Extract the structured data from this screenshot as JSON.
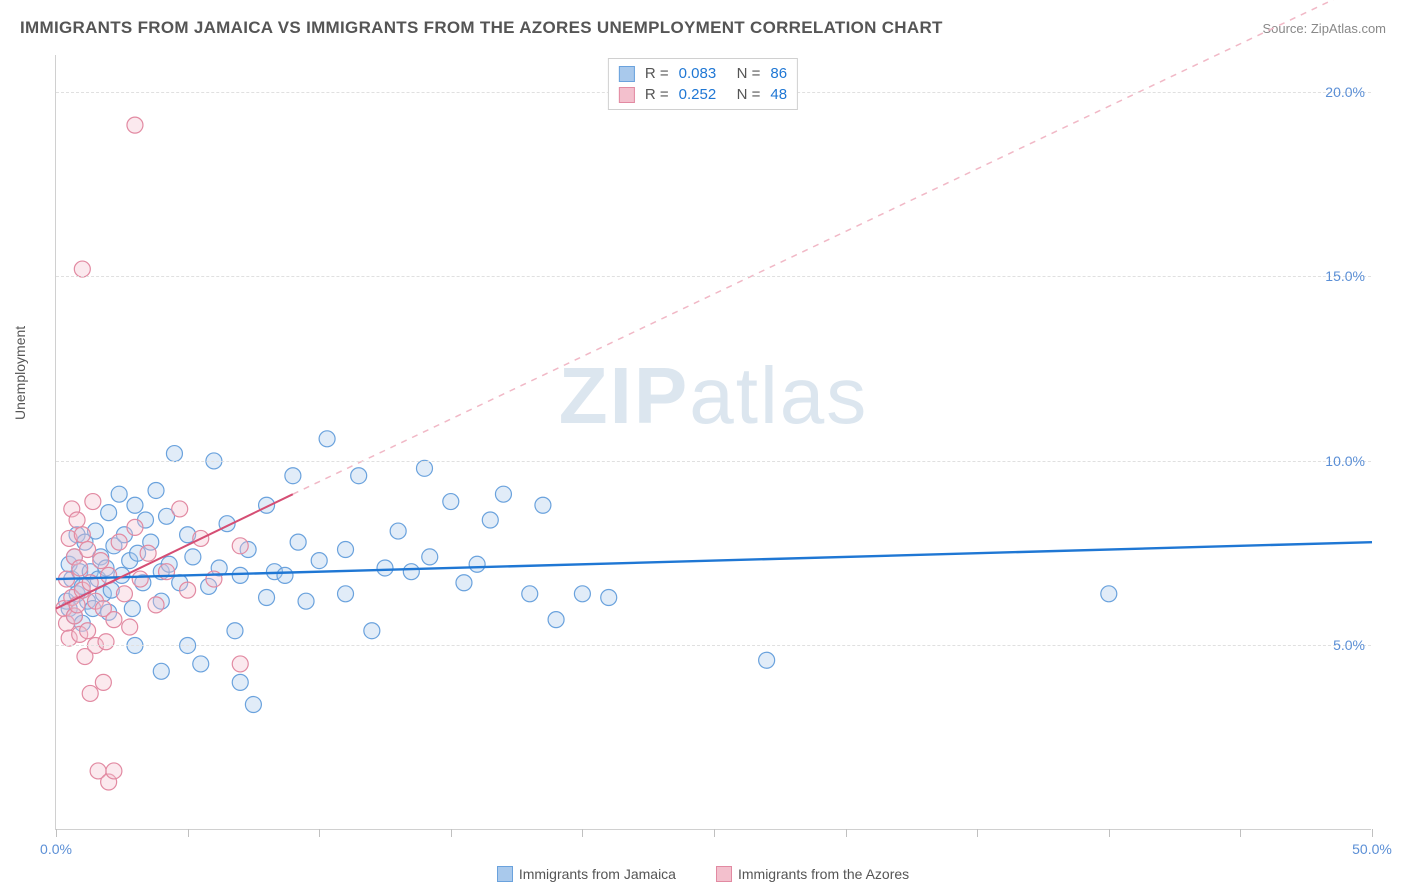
{
  "title": "IMMIGRANTS FROM JAMAICA VS IMMIGRANTS FROM THE AZORES UNEMPLOYMENT CORRELATION CHART",
  "source_label": "Source: ZipAtlas.com",
  "y_axis_label": "Unemployment",
  "watermark": {
    "bold": "ZIP",
    "rest": "atlas"
  },
  "chart": {
    "type": "scatter",
    "xlim": [
      0,
      50
    ],
    "ylim": [
      0,
      21
    ],
    "x_ticks": [
      0,
      5,
      10,
      15,
      20,
      25,
      30,
      35,
      40,
      45,
      50
    ],
    "x_tick_labels": {
      "0": "0.0%",
      "50": "50.0%"
    },
    "y_ticks": [
      5,
      10,
      15,
      20
    ],
    "y_tick_labels": {
      "5": "5.0%",
      "10": "10.0%",
      "15": "15.0%",
      "20": "20.0%"
    },
    "grid_color": "#e0e0e0",
    "axis_color": "#d0d0d0",
    "label_color": "#5b8fd6",
    "background_color": "#ffffff",
    "marker_radius": 8,
    "marker_fill_opacity": 0.35,
    "series": [
      {
        "name": "Immigrants from Jamaica",
        "color_stroke": "#6aa2dd",
        "color_fill": "#a9c9ec",
        "R": "0.083",
        "N": "86",
        "trend": {
          "x1": 0,
          "y1": 6.8,
          "x2": 50,
          "y2": 7.8,
          "solid_color": "#1f77d4",
          "width": 2.4
        },
        "points": [
          [
            0.4,
            6.2
          ],
          [
            0.5,
            7.2
          ],
          [
            0.5,
            6.0
          ],
          [
            0.6,
            6.8
          ],
          [
            0.7,
            5.8
          ],
          [
            0.7,
            7.4
          ],
          [
            0.8,
            8.0
          ],
          [
            0.8,
            6.4
          ],
          [
            0.9,
            7.0
          ],
          [
            1.0,
            5.6
          ],
          [
            1.0,
            6.6
          ],
          [
            1.1,
            7.8
          ],
          [
            1.2,
            6.2
          ],
          [
            1.3,
            7.0
          ],
          [
            1.4,
            6.0
          ],
          [
            1.5,
            8.1
          ],
          [
            1.6,
            6.8
          ],
          [
            1.7,
            7.4
          ],
          [
            1.8,
            6.4
          ],
          [
            1.9,
            7.1
          ],
          [
            2.0,
            5.9
          ],
          [
            2.0,
            8.6
          ],
          [
            2.1,
            6.5
          ],
          [
            2.2,
            7.7
          ],
          [
            2.4,
            9.1
          ],
          [
            2.5,
            6.9
          ],
          [
            2.6,
            8.0
          ],
          [
            2.8,
            7.3
          ],
          [
            2.9,
            6.0
          ],
          [
            3.0,
            8.8
          ],
          [
            3.1,
            7.5
          ],
          [
            3.3,
            6.7
          ],
          [
            3.4,
            8.4
          ],
          [
            3.6,
            7.8
          ],
          [
            3.8,
            9.2
          ],
          [
            4.0,
            6.2
          ],
          [
            4.0,
            7.0
          ],
          [
            4.2,
            8.5
          ],
          [
            4.5,
            10.2
          ],
          [
            4.3,
            7.2
          ],
          [
            4.7,
            6.7
          ],
          [
            5.0,
            8.0
          ],
          [
            5.0,
            5.0
          ],
          [
            5.2,
            7.4
          ],
          [
            5.5,
            4.5
          ],
          [
            5.8,
            6.6
          ],
          [
            6.0,
            10.0
          ],
          [
            6.2,
            7.1
          ],
          [
            6.5,
            8.3
          ],
          [
            6.8,
            5.4
          ],
          [
            7.0,
            4.0
          ],
          [
            7.0,
            6.9
          ],
          [
            7.3,
            7.6
          ],
          [
            7.5,
            3.4
          ],
          [
            8.0,
            6.3
          ],
          [
            8.0,
            8.8
          ],
          [
            8.3,
            7.0
          ],
          [
            8.7,
            6.9
          ],
          [
            9.0,
            9.6
          ],
          [
            9.2,
            7.8
          ],
          [
            9.5,
            6.2
          ],
          [
            10.0,
            7.3
          ],
          [
            10.3,
            10.6
          ],
          [
            11.0,
            7.6
          ],
          [
            11.0,
            6.4
          ],
          [
            11.5,
            9.6
          ],
          [
            12.0,
            5.4
          ],
          [
            12.5,
            7.1
          ],
          [
            13.0,
            8.1
          ],
          [
            13.5,
            7.0
          ],
          [
            14.0,
            9.8
          ],
          [
            14.2,
            7.4
          ],
          [
            15.0,
            8.9
          ],
          [
            15.5,
            6.7
          ],
          [
            16.0,
            7.2
          ],
          [
            16.5,
            8.4
          ],
          [
            17.0,
            9.1
          ],
          [
            18.0,
            6.4
          ],
          [
            18.5,
            8.8
          ],
          [
            19.0,
            5.7
          ],
          [
            20.0,
            6.4
          ],
          [
            21.0,
            6.3
          ],
          [
            27.0,
            4.6
          ],
          [
            40.0,
            6.4
          ],
          [
            3.0,
            5.0
          ],
          [
            4.0,
            4.3
          ]
        ]
      },
      {
        "name": "Immigrants from the Azores",
        "color_stroke": "#e28aa2",
        "color_fill": "#f3c0cd",
        "R": "0.252",
        "N": "48",
        "trend": {
          "x1": 0,
          "y1": 6.0,
          "x2_solid": 9,
          "y2_solid": 9.1,
          "x2_dash": 50,
          "y2_dash": 23.0,
          "solid_color": "#d54e74",
          "dash_color": "#f1b8c6",
          "width": 2
        },
        "points": [
          [
            0.3,
            6.0
          ],
          [
            0.4,
            5.6
          ],
          [
            0.4,
            6.8
          ],
          [
            0.5,
            7.9
          ],
          [
            0.5,
            5.2
          ],
          [
            0.6,
            6.3
          ],
          [
            0.6,
            8.7
          ],
          [
            0.7,
            7.4
          ],
          [
            0.7,
            5.8
          ],
          [
            0.8,
            8.4
          ],
          [
            0.8,
            6.1
          ],
          [
            0.9,
            7.1
          ],
          [
            0.9,
            5.3
          ],
          [
            1.0,
            15.2
          ],
          [
            1.0,
            8.0
          ],
          [
            1.0,
            6.5
          ],
          [
            1.1,
            4.7
          ],
          [
            1.2,
            5.4
          ],
          [
            1.2,
            7.6
          ],
          [
            1.3,
            6.7
          ],
          [
            1.3,
            3.7
          ],
          [
            1.4,
            8.9
          ],
          [
            1.5,
            5.0
          ],
          [
            1.5,
            6.2
          ],
          [
            1.6,
            1.6
          ],
          [
            1.7,
            7.3
          ],
          [
            1.8,
            4.0
          ],
          [
            1.8,
            6.0
          ],
          [
            1.9,
            5.1
          ],
          [
            2.0,
            1.3
          ],
          [
            2.0,
            6.9
          ],
          [
            2.2,
            1.6
          ],
          [
            2.2,
            5.7
          ],
          [
            2.4,
            7.8
          ],
          [
            2.6,
            6.4
          ],
          [
            2.8,
            5.5
          ],
          [
            3.0,
            8.2
          ],
          [
            3.0,
            19.1
          ],
          [
            3.2,
            6.8
          ],
          [
            3.5,
            7.5
          ],
          [
            3.8,
            6.1
          ],
          [
            4.2,
            7.0
          ],
          [
            4.7,
            8.7
          ],
          [
            5.0,
            6.5
          ],
          [
            5.5,
            7.9
          ],
          [
            6.0,
            6.8
          ],
          [
            7.0,
            4.5
          ],
          [
            7.0,
            7.7
          ]
        ]
      }
    ]
  },
  "stats_labels": {
    "R": "R =",
    "N": "N ="
  },
  "bottom_legend": [
    {
      "label": "Immigrants from Jamaica",
      "stroke": "#6aa2dd",
      "fill": "#a9c9ec"
    },
    {
      "label": "Immigrants from the Azores",
      "stroke": "#e28aa2",
      "fill": "#f3c0cd"
    }
  ]
}
